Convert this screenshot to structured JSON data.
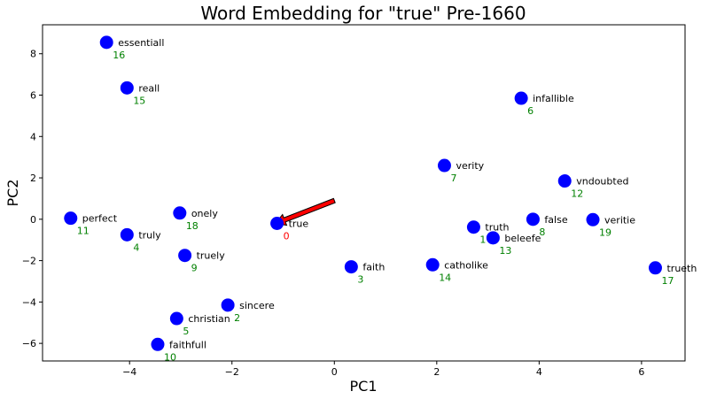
{
  "chart_data": {
    "type": "scatter",
    "title": "Word Embedding for \"true\" Pre-1660",
    "xlabel": "PC1",
    "ylabel": "PC2",
    "xlim": [
      -5.7,
      6.85
    ],
    "ylim": [
      -6.85,
      9.4
    ],
    "xticks": [
      -4,
      -2,
      0,
      2,
      4,
      6
    ],
    "yticks": [
      -6,
      -4,
      -2,
      0,
      2,
      4,
      6,
      8
    ],
    "grid": false,
    "point_color": "#0000ff",
    "target_color": "#ff0000",
    "index_color": "#008000",
    "arrow": {
      "from": [
        0.0,
        0.9
      ],
      "to": [
        -1.15,
        -0.2
      ],
      "color": "#ff0000"
    },
    "points": [
      {
        "word": "true",
        "index": "0",
        "x": -1.12,
        "y": -0.2,
        "target": true
      },
      {
        "word": "truth",
        "index": "1",
        "x": 2.72,
        "y": -0.38
      },
      {
        "word": "sincere",
        "index": "2",
        "x": -2.08,
        "y": -4.15
      },
      {
        "word": "faith",
        "index": "3",
        "x": 0.33,
        "y": -2.3
      },
      {
        "word": "truly",
        "index": "4",
        "x": -4.05,
        "y": -0.75
      },
      {
        "word": "christian",
        "index": "5",
        "x": -3.08,
        "y": -4.8
      },
      {
        "word": "infallible",
        "index": "6",
        "x": 3.65,
        "y": 5.85
      },
      {
        "word": "verity",
        "index": "7",
        "x": 2.15,
        "y": 2.6
      },
      {
        "word": "false",
        "index": "8",
        "x": 3.88,
        "y": 0.0
      },
      {
        "word": "truely",
        "index": "9",
        "x": -2.92,
        "y": -1.75
      },
      {
        "word": "faithfull",
        "index": "10",
        "x": -3.45,
        "y": -6.05
      },
      {
        "word": "perfect",
        "index": "11",
        "x": -5.15,
        "y": 0.05
      },
      {
        "word": "vndoubted",
        "index": "12",
        "x": 4.5,
        "y": 1.85
      },
      {
        "word": "beleefe",
        "index": "13",
        "x": 3.1,
        "y": -0.9
      },
      {
        "word": "catholike",
        "index": "14",
        "x": 1.92,
        "y": -2.2
      },
      {
        "word": "reall",
        "index": "15",
        "x": -4.05,
        "y": 6.35
      },
      {
        "word": "essentiall",
        "index": "16",
        "x": -4.45,
        "y": 8.55
      },
      {
        "word": "trueth",
        "index": "17",
        "x": 6.27,
        "y": -2.35
      },
      {
        "word": "onely",
        "index": "18",
        "x": -3.02,
        "y": 0.3
      },
      {
        "word": "veritie",
        "index": "19",
        "x": 5.05,
        "y": -0.02
      }
    ]
  }
}
